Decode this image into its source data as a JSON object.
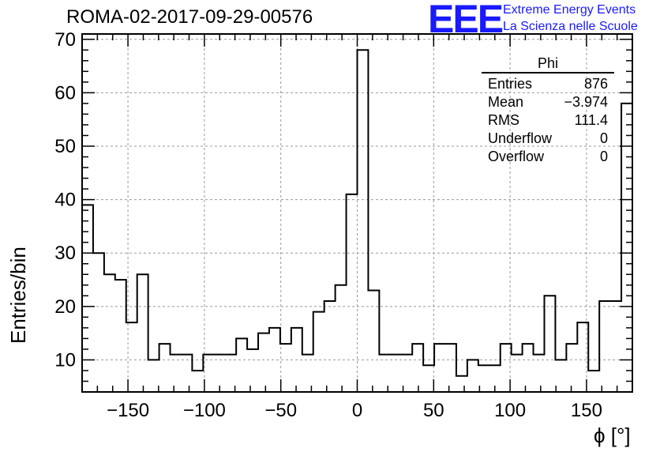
{
  "header": {
    "title": "ROMA-02-2017-09-29-00576"
  },
  "logo": {
    "text": "EEE",
    "line1": "Extreme Energy Events",
    "line2": "La Scienza nelle Scuole",
    "color": "#1a1aff"
  },
  "stats_box": {
    "title": "Phi",
    "rows": [
      {
        "label": "Entries",
        "value": "876"
      },
      {
        "label": "Mean",
        "value": "−3.974"
      },
      {
        "label": "RMS",
        "value": "111.4"
      },
      {
        "label": "Underflow",
        "value": "0"
      },
      {
        "label": "Overflow",
        "value": "0"
      }
    ]
  },
  "chart_data": {
    "type": "histogram",
    "title": "ROMA-02-2017-09-29-00576",
    "xlabel": "ϕ [°]",
    "ylabel": "Entries/bin",
    "xlim": [
      -180,
      180
    ],
    "ylim": [
      4,
      71
    ],
    "bin_width": 7.2,
    "grid": true,
    "x_ticks": [
      -150,
      -100,
      -50,
      0,
      50,
      100,
      150
    ],
    "y_ticks": [
      10,
      20,
      30,
      40,
      50,
      60,
      70
    ],
    "values": [
      39,
      30,
      26,
      25,
      17,
      26,
      10,
      13,
      11,
      11,
      8,
      11,
      11,
      11,
      14,
      12,
      15,
      16,
      13,
      16,
      11,
      19,
      21,
      24,
      41,
      68,
      23,
      11,
      11,
      11,
      13,
      9,
      13,
      13,
      7,
      10,
      9,
      9,
      13,
      11,
      13,
      11,
      22,
      10,
      13,
      17,
      8,
      21,
      21,
      58
    ]
  }
}
